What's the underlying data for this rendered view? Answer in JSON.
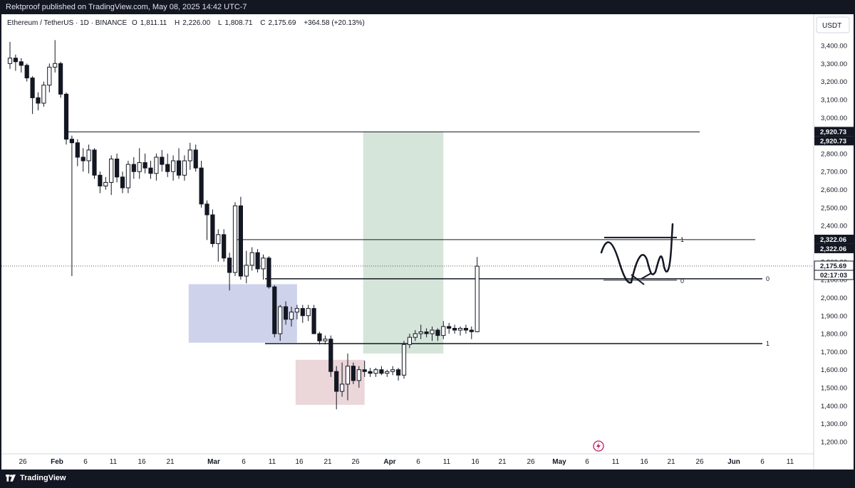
{
  "header": {
    "publisher_line": "Rektproof published on TradingView.com, May 08, 2025 14:42 UTC-7"
  },
  "legend": {
    "symbol": "Ethereum / TetherUS · 1D · BINANCE",
    "open_label": "O",
    "open": "1,811.11",
    "high_label": "H",
    "high": "2,226.00",
    "low_label": "L",
    "low": "1,808.71",
    "close_label": "C",
    "close": "2,175.69",
    "change": "+364.58 (+20.13%)"
  },
  "price_axis": {
    "currency_button": "USDT",
    "ticks": [
      "3,400.00",
      "3,300.00",
      "3,200.00",
      "3,100.00",
      "3,000.00",
      "2,900.00",
      "2,800.00",
      "2,700.00",
      "2,600.00",
      "2,500.00",
      "2,400.00",
      "2,300.00",
      "2,200.00",
      "2,100.00",
      "2,000.00",
      "1,900.00",
      "1,800.00",
      "1,700.00",
      "1,600.00",
      "1,500.00",
      "1,400.00",
      "1,300.00",
      "1,200.00"
    ],
    "tick_values": [
      3400,
      3300,
      3200,
      3100,
      3000,
      2900,
      2800,
      2700,
      2600,
      2500,
      2400,
      2300,
      2200,
      2100,
      2000,
      1900,
      1800,
      1700,
      1600,
      1500,
      1400,
      1300,
      1200
    ],
    "labels": [
      {
        "text": "2,920.73",
        "value": 2920.73,
        "style": "dark"
      },
      {
        "text": "2,920.73",
        "value": 2920.73,
        "style": "dark",
        "offset": 1
      },
      {
        "text": "2,322.06",
        "value": 2322.06,
        "style": "dark"
      },
      {
        "text": "2,322.06",
        "value": 2322.06,
        "style": "dark",
        "offset": 1
      },
      {
        "text": "2,175.69",
        "value": 2175.69,
        "style": "price"
      },
      {
        "text": "02:17:03",
        "value": 2175.69,
        "style": "price",
        "offset": 1
      }
    ],
    "range": [
      1150,
      3500
    ]
  },
  "time_axis": {
    "ticks": [
      "26",
      "Feb",
      "6",
      "11",
      "16",
      "21",
      "Mar",
      "6",
      "11",
      "16",
      "21",
      "26",
      "Apr",
      "6",
      "11",
      "16",
      "21",
      "26",
      "May",
      "6",
      "11",
      "16",
      "21",
      "26",
      "Jun",
      "6",
      "11"
    ],
    "bold": [
      "Feb",
      "Mar",
      "Apr",
      "May",
      "Jun"
    ]
  },
  "chart_data": {
    "type": "candlestick",
    "symbol": "ETHUSDT",
    "interval": "1D",
    "horizontal_levels": [
      2920.73,
      2322.06,
      2105,
      1745
    ],
    "fib_labels": [
      "1",
      "0",
      "0",
      "1"
    ],
    "zones": [
      {
        "name": "blue-range",
        "from_bar": 32,
        "to_bar": 51,
        "top": 2075,
        "bottom": 1750,
        "color": "#c5cbe8"
      },
      {
        "name": "red-range",
        "from_bar": 51,
        "to_bar": 63,
        "top": 1655,
        "bottom": 1405,
        "color": "#e8cfd3"
      },
      {
        "name": "green-target",
        "from_bar": 63,
        "to_bar": 77,
        "top": 2920,
        "bottom": 1690,
        "color": "#cfe0d3"
      }
    ],
    "candles": [
      [
        3300,
        3420,
        3270,
        3330
      ],
      [
        3330,
        3350,
        3260,
        3310
      ],
      [
        3310,
        3330,
        3250,
        3290
      ],
      [
        3290,
        3300,
        3200,
        3220
      ],
      [
        3220,
        3230,
        3020,
        3110
      ],
      [
        3110,
        3140,
        3040,
        3080
      ],
      [
        3080,
        3200,
        3060,
        3180
      ],
      [
        3180,
        3300,
        3140,
        3280
      ],
      [
        3280,
        3430,
        3250,
        3300
      ],
      [
        3300,
        3310,
        3110,
        3130
      ],
      [
        3130,
        3140,
        2850,
        2880
      ],
      [
        2880,
        2900,
        2120,
        2860
      ],
      [
        2860,
        2880,
        2730,
        2780
      ],
      [
        2780,
        2830,
        2700,
        2760
      ],
      [
        2760,
        2850,
        2690,
        2820
      ],
      [
        2820,
        2830,
        2660,
        2680
      ],
      [
        2680,
        2700,
        2580,
        2620
      ],
      [
        2620,
        2670,
        2600,
        2640
      ],
      [
        2640,
        2790,
        2570,
        2770
      ],
      [
        2770,
        2800,
        2640,
        2670
      ],
      [
        2670,
        2700,
        2580,
        2610
      ],
      [
        2610,
        2760,
        2580,
        2740
      ],
      [
        2740,
        2780,
        2660,
        2700
      ],
      [
        2700,
        2830,
        2660,
        2750
      ],
      [
        2750,
        2800,
        2690,
        2720
      ],
      [
        2720,
        2760,
        2660,
        2690
      ],
      [
        2690,
        2800,
        2650,
        2780
      ],
      [
        2780,
        2820,
        2700,
        2740
      ],
      [
        2740,
        2800,
        2670,
        2700
      ],
      [
        2700,
        2790,
        2650,
        2760
      ],
      [
        2760,
        2830,
        2660,
        2680
      ],
      [
        2680,
        2790,
        2650,
        2760
      ],
      [
        2760,
        2860,
        2710,
        2820
      ],
      [
        2820,
        2850,
        2700,
        2720
      ],
      [
        2720,
        2760,
        2500,
        2520
      ],
      [
        2520,
        2540,
        2320,
        2460
      ],
      [
        2460,
        2490,
        2280,
        2300
      ],
      [
        2300,
        2380,
        2200,
        2350
      ],
      [
        2350,
        2380,
        2200,
        2220
      ],
      [
        2220,
        2250,
        2040,
        2140
      ],
      [
        2140,
        2530,
        2120,
        2510
      ],
      [
        2510,
        2560,
        2100,
        2120
      ],
      [
        2120,
        2260,
        2080,
        2180
      ],
      [
        2180,
        2280,
        2150,
        2250
      ],
      [
        2250,
        2270,
        2140,
        2160
      ],
      [
        2160,
        2240,
        2100,
        2220
      ],
      [
        2220,
        2230,
        2050,
        2060
      ],
      [
        2060,
        2070,
        1780,
        1800
      ],
      [
        1800,
        1960,
        1760,
        1950
      ],
      [
        1950,
        1980,
        1850,
        1880
      ],
      [
        1880,
        1950,
        1840,
        1920
      ],
      [
        1920,
        1960,
        1880,
        1940
      ],
      [
        1940,
        1960,
        1860,
        1900
      ],
      [
        1900,
        1960,
        1870,
        1940
      ]
    ]
  }
}
